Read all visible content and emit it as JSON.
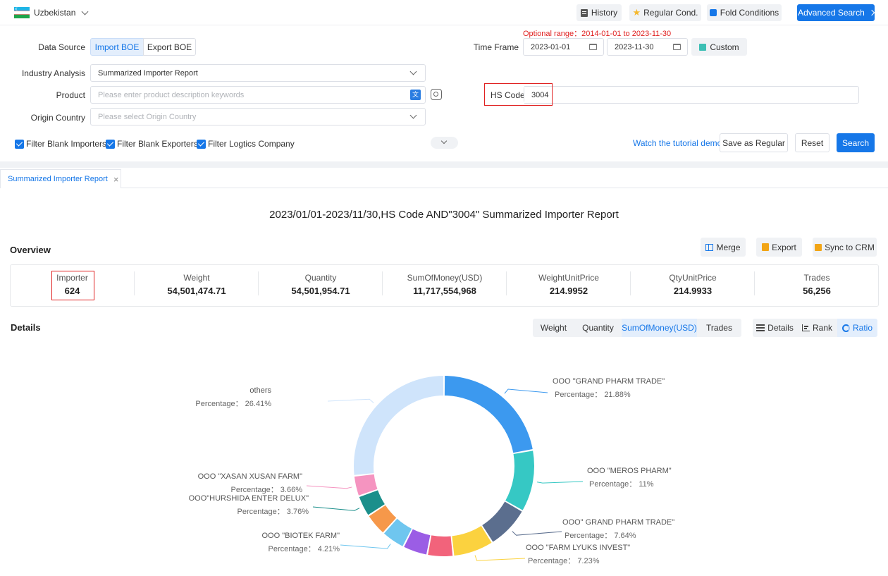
{
  "topbar": {
    "country": "Uzbekistan",
    "history": "History",
    "regular_cond": "Regular Cond.",
    "fold_conditions": "Fold Conditions",
    "advanced_search": "Advanced Search"
  },
  "form": {
    "optional_range": "Optional range：2014-01-01 to 2023-11-30",
    "data_source_label": "Data Source",
    "import_boe": "Import BOE",
    "export_boe": "Export BOE",
    "time_frame_label": "Time Frame",
    "date_from": "2023-01-01",
    "date_to": "2023-11-30",
    "custom": "Custom",
    "industry_label": "Industry Analysis",
    "industry_value": "Summarized Importer Report",
    "product_label": "Product",
    "product_placeholder": "Please enter product description keywords",
    "hs_code_label": "HS Code",
    "hs_code_value": "3004",
    "origin_label": "Origin Country",
    "origin_placeholder": "Please select Origin Country",
    "filter_importers": "Filter Blank Importers",
    "filter_exporters": "Filter Blank Exporters",
    "filter_logistics": "Filter Logtics Company",
    "tutorial": "Watch the tutorial demo",
    "save_regular": "Save as Regular",
    "reset": "Reset",
    "search": "Search"
  },
  "tab": {
    "label": "Summarized Importer Report"
  },
  "report_title": "2023/01/01-2023/11/30,HS Code AND\"3004\" Summarized Importer Report",
  "overview": {
    "heading": "Overview",
    "merge": "Merge",
    "export": "Export",
    "sync": "Sync to CRM",
    "stats": [
      {
        "key": "Importer",
        "value": "624"
      },
      {
        "key": "Weight",
        "value": "54,501,474.71"
      },
      {
        "key": "Quantity",
        "value": "54,501,954.71"
      },
      {
        "key": "SumOfMoney(USD)",
        "value": "11,717,554,968"
      },
      {
        "key": "WeightUnitPrice",
        "value": "214.9952"
      },
      {
        "key": "QtyUnitPrice",
        "value": "214.9933"
      },
      {
        "key": "Trades",
        "value": "56,256"
      }
    ]
  },
  "details": {
    "heading": "Details",
    "metrics": [
      "Weight",
      "Quantity",
      "SumOfMoney(USD)",
      "Trades"
    ],
    "active_metric": "SumOfMoney(USD)",
    "views": [
      "Details",
      "Rank",
      "Ratio"
    ],
    "active_view": "Ratio"
  },
  "chart_data": {
    "type": "pie",
    "slices": [
      {
        "name": "OOO \"GRAND PHARM TRADE\"",
        "percentage": 21.88,
        "label": "Percentage： 21.88%",
        "color": "#3c99ef"
      },
      {
        "name": "OOO \"MEROS PHARM\"",
        "percentage": 11,
        "label": "Percentage： 11%",
        "color": "#36c8c4"
      },
      {
        "name": "OOO\" GRAND PHARM TRADE\"",
        "percentage": 7.64,
        "label": "Percentage： 7.64%",
        "color": "#5b6e8e"
      },
      {
        "name": "OOO \"FARM LYUKS INVEST\"",
        "percentage": 7.23,
        "label": "Percentage： 7.23%",
        "color": "#fbd23f"
      },
      {
        "name": "",
        "percentage": 4.6,
        "label": "",
        "color": "#f2637b"
      },
      {
        "name": "",
        "percentage": 4.4,
        "label": "",
        "color": "#9b5de5"
      },
      {
        "name": "OOO \"BIOTEK FARM\"",
        "percentage": 4.21,
        "label": "Percentage： 4.21%",
        "color": "#6fc6ef"
      },
      {
        "name": "",
        "percentage": 4.0,
        "label": "",
        "color": "#f6984a"
      },
      {
        "name": "OOO\"HURSHIDA ENTER DELUX\"",
        "percentage": 3.76,
        "label": "Percentage： 3.76%",
        "color": "#1b8f8b"
      },
      {
        "name": "OOO \"XASAN XUSAN FARM\"",
        "percentage": 3.66,
        "label": "Percentage： 3.66%",
        "color": "#f594c0"
      },
      {
        "name": "others",
        "percentage": 26.41,
        "label": "Percentage： 26.41%",
        "color": "#cfe4fb"
      }
    ]
  }
}
